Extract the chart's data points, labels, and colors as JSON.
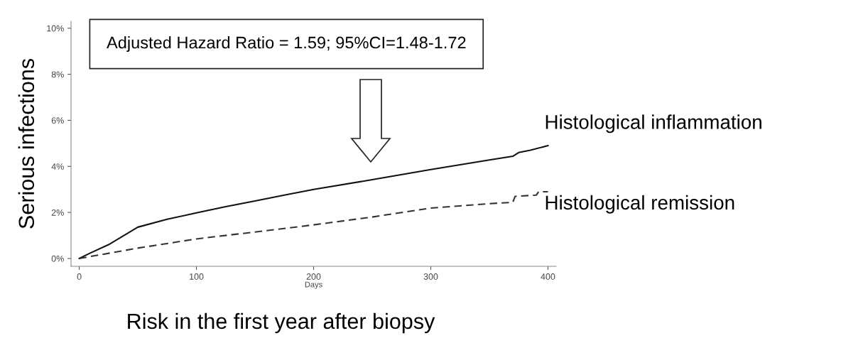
{
  "chart_data": {
    "type": "line",
    "xlabel": "Days",
    "ylabel": "Serious infections",
    "xlim": [
      -7,
      407
    ],
    "xticks": [
      0,
      100,
      200,
      300,
      400
    ],
    "ylim": [
      -0.34,
      10.3
    ],
    "yticks": [
      {
        "value": 0,
        "label": "0%"
      },
      {
        "value": 2,
        "label": "2%"
      },
      {
        "value": 4,
        "label": "4%"
      },
      {
        "value": 6,
        "label": "6%"
      },
      {
        "value": 8,
        "label": "8%"
      },
      {
        "value": 10,
        "label": "10%"
      }
    ],
    "grid": false,
    "legend": false,
    "series": [
      {
        "name": "Histological inflammation",
        "color": "#111111",
        "line_style": "solid",
        "x": [
          0,
          10,
          25,
          50,
          75,
          100,
          125,
          150,
          175,
          200,
          250,
          300,
          350,
          370,
          375,
          385,
          400
        ],
        "values": [
          0,
          0.25,
          0.6,
          1.36,
          1.7,
          1.98,
          2.25,
          2.5,
          2.75,
          3.0,
          3.42,
          3.86,
          4.28,
          4.44,
          4.6,
          4.7,
          4.9
        ]
      },
      {
        "name": "Histological remission",
        "color": "#333333",
        "line_style": "dashed",
        "x": [
          0,
          50,
          100,
          150,
          200,
          250,
          300,
          350,
          370,
          372,
          390,
          392,
          400
        ],
        "values": [
          0,
          0.45,
          0.85,
          1.15,
          1.46,
          1.8,
          2.19,
          2.38,
          2.44,
          2.7,
          2.75,
          2.9,
          2.9
        ]
      }
    ],
    "annotations": [
      "Adjusted Hazard Ratio = 1.59; 95%CI=1.48-1.72",
      "Risk in the first year after biopsy"
    ]
  }
}
